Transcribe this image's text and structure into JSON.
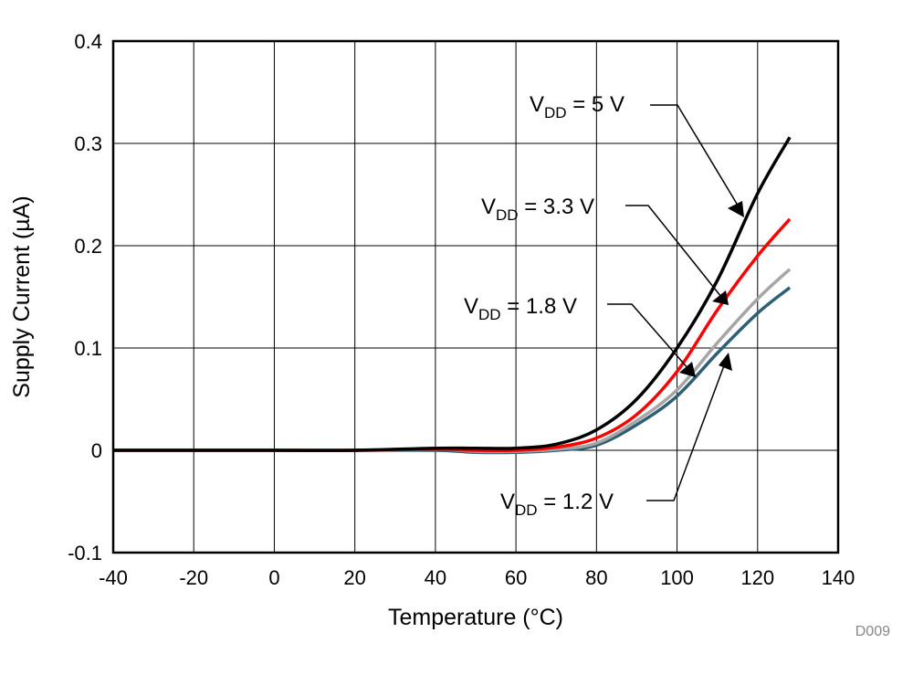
{
  "chart_data": {
    "type": "line",
    "title": "",
    "xlabel": "Temperature (°C)",
    "ylabel": "Supply Current (µA)",
    "xlim": [
      -40,
      140
    ],
    "ylim": [
      -0.1,
      0.4
    ],
    "xticks": [
      "-40",
      "-20",
      "0",
      "20",
      "40",
      "60",
      "80",
      "100",
      "120",
      "140"
    ],
    "yticks": [
      "-0.1",
      "0",
      "0.1",
      "0.2",
      "0.3",
      "0.4"
    ],
    "grid": true,
    "x": [
      -40,
      -20,
      0,
      20,
      40,
      50,
      60,
      70,
      80,
      90,
      100,
      110,
      120,
      128
    ],
    "series": [
      {
        "name": "VDD = 5 V",
        "color": "#000000",
        "values": [
          0,
          0,
          0,
          0,
          0.002,
          0.002,
          0.002,
          0.006,
          0.02,
          0.05,
          0.1,
          0.166,
          0.251,
          0.306
        ]
      },
      {
        "name": "VDD = 3.3 V",
        "color": "#ff0000",
        "values": [
          0,
          0,
          0,
          0,
          0.001,
          0,
          0,
          0.003,
          0.012,
          0.035,
          0.077,
          0.137,
          0.19,
          0.226
        ]
      },
      {
        "name": "VDD = 1.8 V",
        "color": "#a6a6a6",
        "values": [
          0,
          0,
          0,
          0,
          0.001,
          -0.001,
          -0.001,
          0.001,
          0.007,
          0.029,
          0.059,
          0.105,
          0.148,
          0.177
        ]
      },
      {
        "name": "VDD = 1.2 V",
        "color": "#2e5f75",
        "values": [
          0,
          0,
          0,
          0,
          0,
          -0.002,
          -0.002,
          0,
          0.005,
          0.025,
          0.053,
          0.095,
          0.134,
          0.159
        ]
      }
    ],
    "annotations": [
      {
        "v": "V",
        "sub": "DD",
        "rest": " = 5 V"
      },
      {
        "v": "V",
        "sub": "DD",
        "rest": " = 3.3 V"
      },
      {
        "v": "V",
        "sub": "DD",
        "rest": " = 1.8 V"
      },
      {
        "v": "V",
        "sub": "DD",
        "rest": " = 1.2 V"
      }
    ],
    "figure_id": "D009"
  }
}
